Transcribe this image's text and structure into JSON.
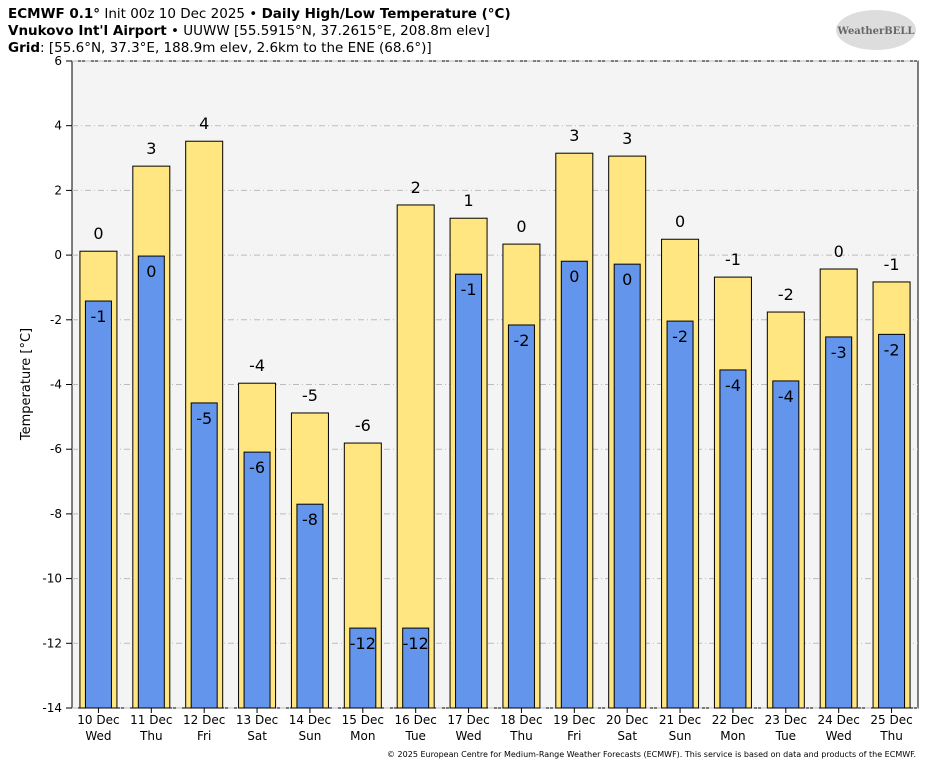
{
  "chart_data": {
    "type": "bar",
    "title_parts": [
      "ECMWF 0.1°",
      " Init 00z 10 Dec 2025 • ",
      "Daily High/Low Temperature (°C)"
    ],
    "subtitle_parts": [
      "Vnukovo Int'l Airport",
      " • UUWW [55.5915°N, 37.2615°E, 208.8m elev]"
    ],
    "grid_parts": [
      "Grid",
      ": [55.6°N, 37.3°E, 188.9m elev, 2.6km to the ENE (68.6°)]"
    ],
    "logo": "WeatherBELL",
    "ylabel": "Temperature [°C]",
    "credit": "© 2025 European Centre for Medium-Range Weather Forecasts (ECMWF). This service is based on data and products of the ECMWF.",
    "categories": [
      "10 Dec",
      "11 Dec",
      "12 Dec",
      "13 Dec",
      "14 Dec",
      "15 Dec",
      "16 Dec",
      "17 Dec",
      "18 Dec",
      "19 Dec",
      "20 Dec",
      "21 Dec",
      "22 Dec",
      "23 Dec",
      "24 Dec",
      "25 Dec"
    ],
    "weekdays": [
      "Wed",
      "Thu",
      "Fri",
      "Sat",
      "Sun",
      "Mon",
      "Tue",
      "Wed",
      "Thu",
      "Fri",
      "Sat",
      "Sun",
      "Mon",
      "Tue",
      "Wed",
      "Thu"
    ],
    "series": [
      {
        "color": "#ffe680",
        "values": [
          0.12,
          2.75,
          3.52,
          -3.96,
          -4.88,
          -5.81,
          1.55,
          1.14,
          0.34,
          3.15,
          3.06,
          0.49,
          -0.68,
          -1.76,
          -0.43,
          -0.83
        ],
        "value_labels": [
          "0",
          "3",
          "4",
          "-4",
          "-5",
          "-6",
          "2",
          "1",
          "0",
          "3",
          "3",
          "0",
          "-1",
          "-2",
          "0",
          "-1"
        ]
      },
      {
        "color": "#6495ed",
        "values": [
          -1.42,
          -0.03,
          -4.57,
          -6.09,
          -7.7,
          -11.53,
          -11.53,
          -0.59,
          -2.16,
          -0.19,
          -0.28,
          -2.04,
          -3.55,
          -3.89,
          -2.53,
          -2.45
        ],
        "value_labels": [
          "-1",
          "0",
          "-5",
          "-6",
          "-8",
          "-12",
          "-12",
          "-1",
          "-2",
          "0",
          "0",
          "-2",
          "-4",
          "-4",
          "-3",
          "-2"
        ]
      }
    ],
    "ylim": [
      -14,
      6
    ],
    "yticks": [
      -14,
      -12,
      -10,
      -8,
      -6,
      -4,
      -2,
      0,
      2,
      4,
      6
    ],
    "grid": true
  }
}
